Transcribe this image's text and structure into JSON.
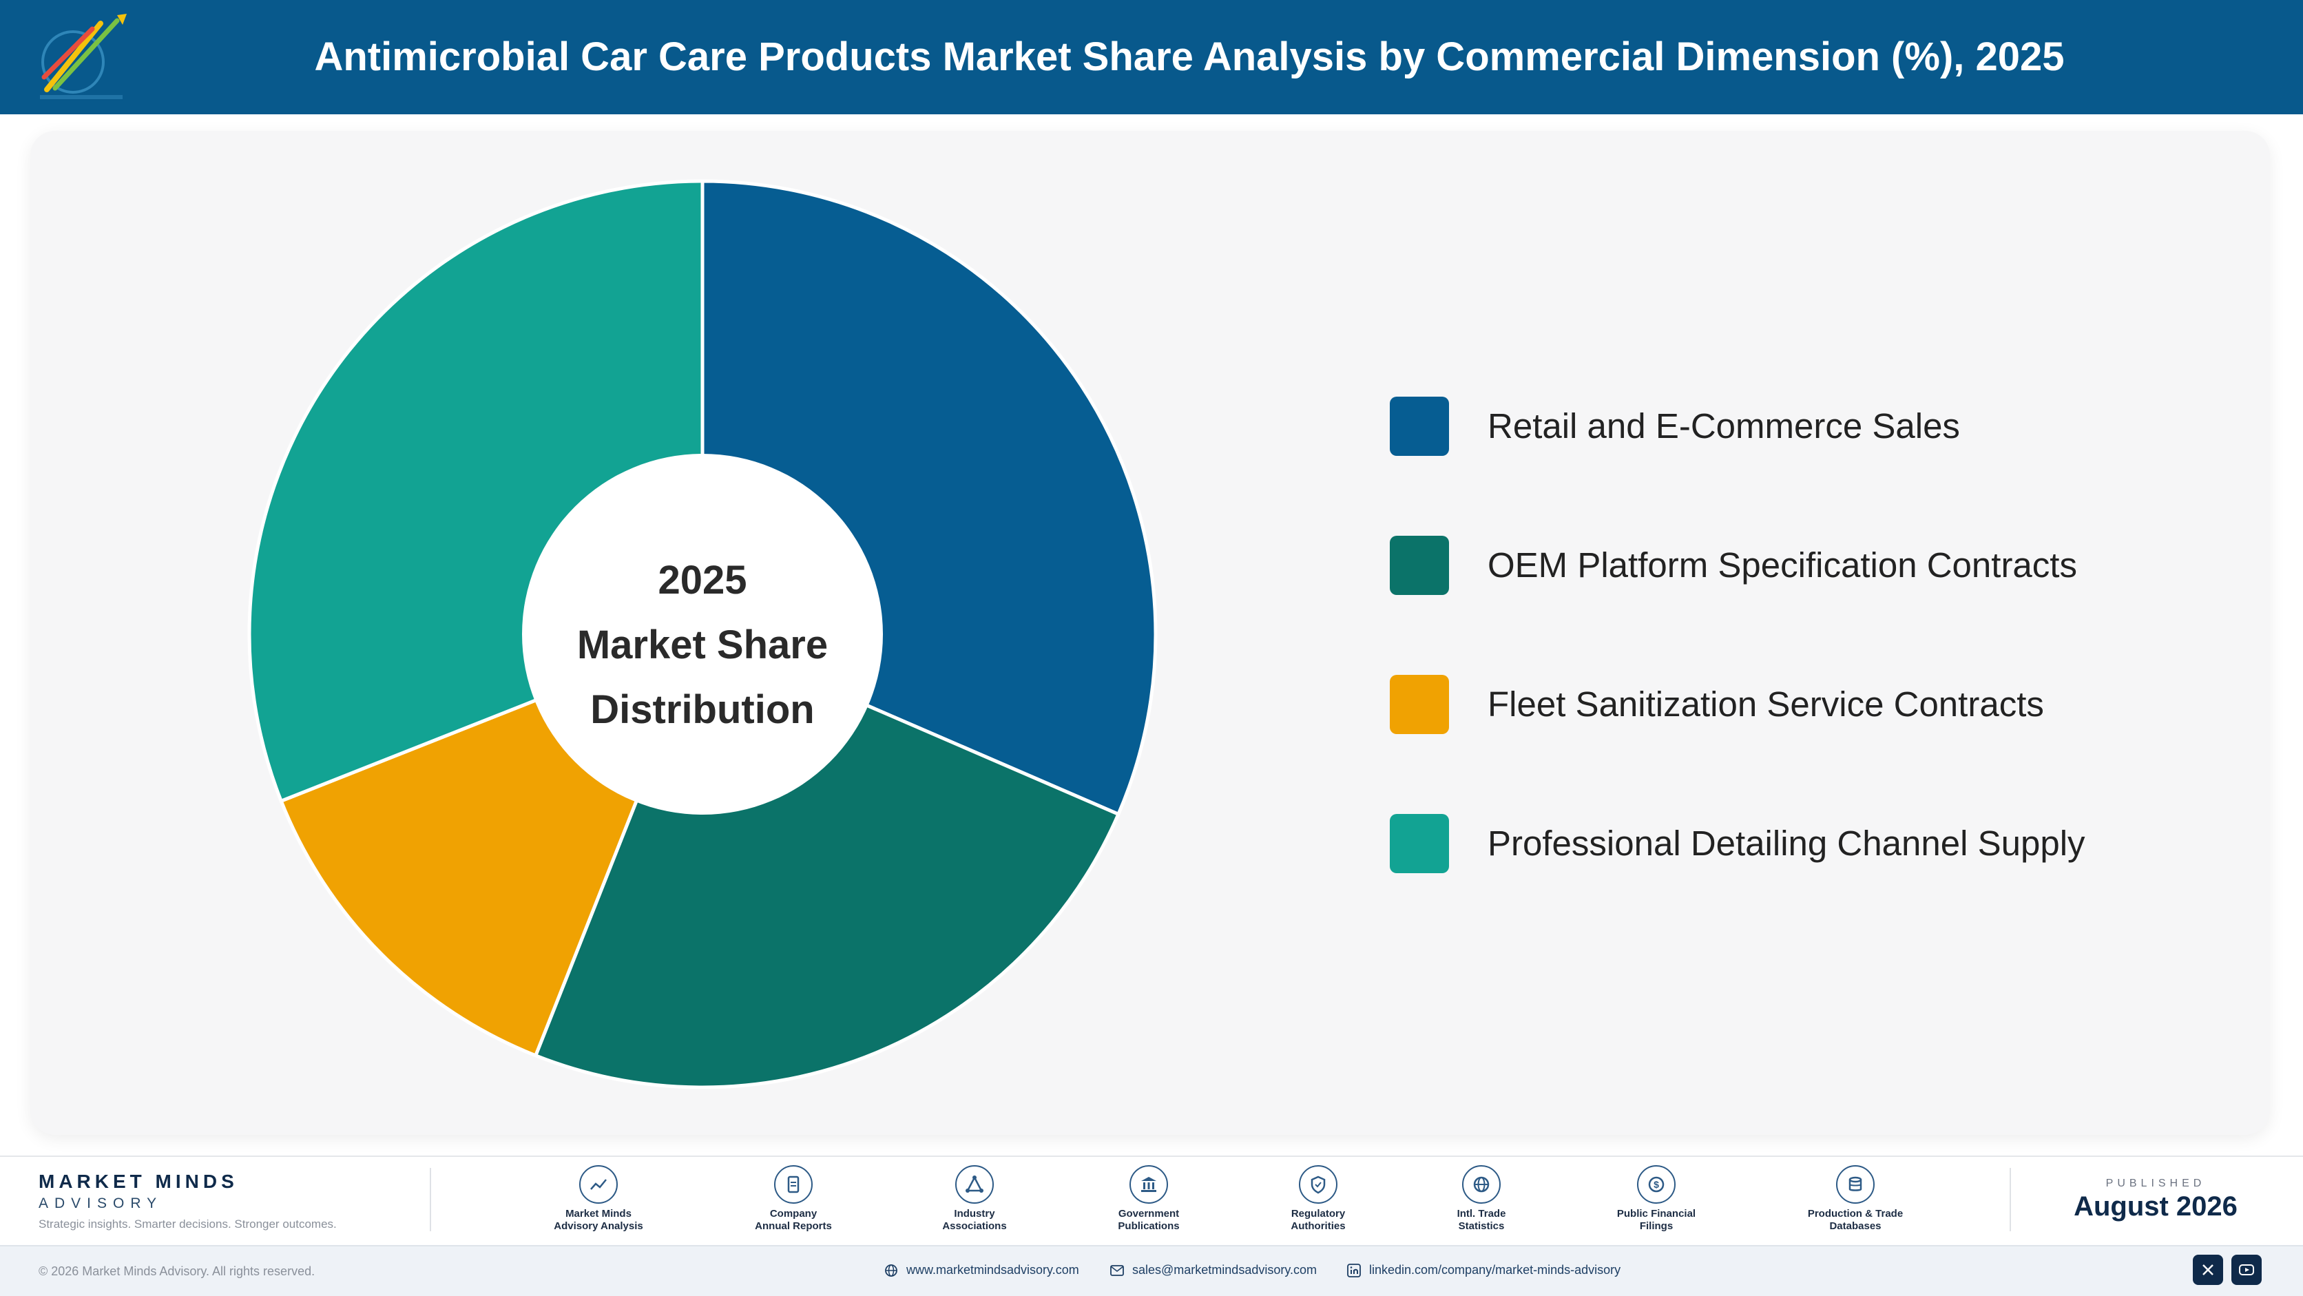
{
  "header": {
    "title": "Antimicrobial Car Care Products Market Share Analysis by Commercial Dimension (%), 2025"
  },
  "chart_data": {
    "type": "pie",
    "donut": true,
    "center_label": [
      "2025",
      "Market Share",
      "Distribution"
    ],
    "categories": [
      "Retail and E-Commerce Sales",
      "OEM Platform Specification Contracts",
      "Fleet Sanitization Service Contracts",
      "Professional Detailing Channel Supply"
    ],
    "values": [
      31.5,
      24.5,
      13.0,
      31.0
    ],
    "colors": [
      "#065d92",
      "#0b7369",
      "#f0a202",
      "#12a393"
    ],
    "legend_position": "right"
  },
  "footer": {
    "brand_name": "MARKET MINDS",
    "brand_sub": "ADVISORY",
    "tagline": "Strategic insights. Smarter decisions. Stronger outcomes.",
    "sources": [
      {
        "line1": "Market Minds",
        "line2": "Advisory Analysis",
        "icon": "chart-line-icon"
      },
      {
        "line1": "Company",
        "line2": "Annual Reports",
        "icon": "document-icon"
      },
      {
        "line1": "Industry",
        "line2": "Associations",
        "icon": "network-icon"
      },
      {
        "line1": "Government",
        "line2": "Publications",
        "icon": "building-icon"
      },
      {
        "line1": "Regulatory",
        "line2": "Authorities",
        "icon": "shield-icon"
      },
      {
        "line1": "Intl. Trade",
        "line2": "Statistics",
        "icon": "globe-icon"
      },
      {
        "line1": "Public Financial",
        "line2": "Filings",
        "icon": "coin-icon"
      },
      {
        "line1": "Production & Trade",
        "line2": "Databases",
        "icon": "database-icon"
      }
    ],
    "published_label": "PUBLISHED",
    "published_date": "August 2026",
    "copyright": "© 2026 Market Minds Advisory. All rights reserved.",
    "website": "www.marketmindsadvisory.com",
    "email": "sales@marketmindsadvisory.com",
    "linkedin": "linkedin.com/company/market-minds-advisory"
  }
}
